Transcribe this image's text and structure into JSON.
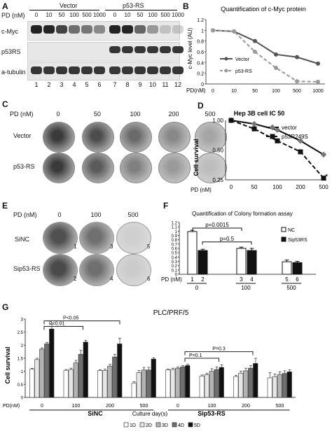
{
  "panelA": {
    "label": "A",
    "pd_header": "PD (nM)",
    "group_vector": "Vector",
    "group_p53rs": "p53-RS",
    "doses": [
      "0",
      "10",
      "50",
      "100",
      "500",
      "1000",
      "0",
      "10",
      "50",
      "100",
      "500",
      "1000"
    ],
    "rows": [
      "c-Myc",
      "p53RS",
      "a-tubulin"
    ],
    "lanes": [
      "1",
      "2",
      "3",
      "4",
      "5",
      "6",
      "7",
      "8",
      "9",
      "10",
      "11",
      "12"
    ]
  },
  "panelB": {
    "label": "B",
    "title": "Quantification of c-Myc protein",
    "ylabel": "c-Myc level (AU)",
    "xlabel_prefix": "PD(nM)",
    "yticks": [
      "0",
      "0.2",
      "0.4",
      "0.6",
      "0.8",
      "1",
      "1.2"
    ],
    "xticks": [
      "0",
      "10",
      "50",
      "100",
      "500",
      "1000"
    ],
    "legend": [
      "Vector",
      "p53-RS"
    ]
  },
  "panelC": {
    "label": "C",
    "pd_header": "PD (nM)",
    "doses": [
      "0",
      "50",
      "100",
      "200",
      "500"
    ],
    "rows": [
      "Vector",
      "p53-RS"
    ]
  },
  "panelD": {
    "label": "D",
    "title": "Hep 3B cell IC 50",
    "ylabel": "Cell survival",
    "xlabel_prefix": "PD (nM)",
    "yticks": [
      "1.00",
      "0.50",
      "0.25"
    ],
    "xticks": [
      "0",
      "50",
      "100",
      "200",
      "500"
    ],
    "legend": [
      "vector",
      "p53R249S"
    ],
    "star": "*"
  },
  "panelE": {
    "label": "E",
    "pd_header": "PD (nM)",
    "doses": [
      "0",
      "100",
      "500"
    ],
    "rows": [
      "SiNC",
      "Sip53-RS"
    ],
    "numbers": [
      "1",
      "3",
      "5",
      "2",
      "4",
      "6"
    ]
  },
  "panelF": {
    "label": "F",
    "title": "Quantification of Colony  formation assay",
    "yticks": [
      "0",
      "0.1",
      "0.2",
      "0.3",
      "0.4",
      "0.5",
      "0.6",
      "0.7",
      "0.8",
      "0.9",
      "1",
      "1.1",
      "1.2"
    ],
    "legend": [
      "NC",
      "Sip53RS"
    ],
    "pvals": [
      "p=0.0015",
      "p=0.5"
    ],
    "xlabel_prefix": "PD (nM)",
    "lane_nums": [
      "1",
      "2",
      "3",
      "4",
      "5",
      "6"
    ],
    "doses": [
      "0",
      "100",
      "500"
    ]
  },
  "panelG": {
    "label": "G",
    "title": "PLC/PRF/5",
    "ylabel": "Cell survival",
    "yticks": [
      "0",
      "0.5",
      "1",
      "1.5",
      "2",
      "2.5",
      "3"
    ],
    "xlabel_prefix": "PD(nM)",
    "doses": [
      "0",
      "100",
      "200",
      "500",
      "0",
      "100",
      "200",
      "500"
    ],
    "groups": [
      "SiNC",
      "Sip53-RS"
    ],
    "xtitle": "Culture day(s)",
    "legend": [
      "1D",
      "2D",
      "3D",
      "4D",
      "5D"
    ],
    "pvals": [
      "P<0.05",
      "P<0.01",
      "P=0.3",
      "P=0.1"
    ]
  },
  "chart_data": [
    {
      "type": "line",
      "title": "Quantification of c-Myc protein",
      "ylabel": "c-Myc level (AU)",
      "categories": [
        "0",
        "10",
        "50",
        "100",
        "500",
        "1000"
      ],
      "ylim": [
        0,
        1.2
      ],
      "series": [
        {
          "name": "Vector",
          "values": [
            1.0,
            0.98,
            0.8,
            0.55,
            0.5,
            0.38
          ],
          "color": "#555555"
        },
        {
          "name": "p53-RS",
          "values": [
            1.0,
            0.98,
            0.6,
            0.3,
            0.05,
            0.04
          ],
          "color": "#999999"
        }
      ]
    },
    {
      "type": "line",
      "title": "Hep 3B cell IC 50",
      "ylabel": "Cell survival",
      "categories": [
        "0",
        "50",
        "100",
        "200",
        "500"
      ],
      "yscale": "log",
      "ylim": [
        0.25,
        1.0
      ],
      "series": [
        {
          "name": "vector",
          "values": [
            1.0,
            0.92,
            0.8,
            0.62,
            0.45
          ],
          "color": "#777777"
        },
        {
          "name": "p53R249S",
          "values": [
            1.0,
            0.82,
            0.62,
            0.48,
            0.26
          ],
          "color": "#111111"
        }
      ]
    },
    {
      "type": "bar",
      "title": "Quantification of Colony  formation assay",
      "categories": [
        "0",
        "100",
        "500"
      ],
      "ylim": [
        0,
        1.2
      ],
      "series": [
        {
          "name": "NC",
          "values": [
            0.99,
            0.6,
            0.29
          ],
          "errors": [
            0.03,
            0.03,
            0.04
          ]
        },
        {
          "name": "Sip53RS",
          "values": [
            0.55,
            0.55,
            0.27
          ],
          "errors": [
            0.03,
            0.05,
            0.03
          ]
        }
      ]
    },
    {
      "type": "bar",
      "title": "PLC/PRF/5",
      "ylabel": "Cell survival",
      "xlabel": "Culture day(s)",
      "categories": [
        "0",
        "100",
        "200",
        "500",
        "0",
        "100",
        "200",
        "500"
      ],
      "groups": [
        "SiNC",
        "SiNC",
        "SiNC",
        "SiNC",
        "Sip53-RS",
        "Sip53-RS",
        "Sip53-RS",
        "Sip53-RS"
      ],
      "ylim": [
        0,
        3
      ],
      "series": [
        {
          "name": "1D",
          "values": [
            1.08,
            1.04,
            1.03,
            0.55,
            1.05,
            0.82,
            0.8,
            0.75
          ],
          "errors": [
            0.03,
            0.03,
            0.03,
            0.05,
            0.03,
            0.04,
            0.05,
            0.2
          ]
        },
        {
          "name": "2D",
          "values": [
            1.45,
            1.07,
            1.03,
            0.95,
            1.07,
            0.87,
            0.93,
            0.8
          ],
          "errors": [
            0.05,
            0.05,
            0.05,
            0.08,
            0.05,
            0.05,
            0.08,
            0.1
          ]
        },
        {
          "name": "3D",
          "values": [
            1.85,
            1.32,
            1.2,
            1.05,
            1.12,
            1.0,
            1.02,
            0.88
          ],
          "errors": [
            0.05,
            0.1,
            0.07,
            0.1,
            0.05,
            0.1,
            0.1,
            0.1
          ]
        },
        {
          "name": "4D",
          "values": [
            2.05,
            1.65,
            1.55,
            1.05,
            1.17,
            1.07,
            1.12,
            0.92
          ],
          "errors": [
            0.06,
            0.15,
            0.1,
            0.1,
            0.05,
            0.1,
            0.1,
            0.1
          ]
        },
        {
          "name": "5D",
          "values": [
            2.62,
            2.12,
            2.05,
            1.47,
            1.22,
            1.15,
            1.3,
            0.98
          ],
          "errors": [
            0.18,
            0.07,
            0.22,
            0.05,
            0.05,
            0.1,
            0.2,
            0.08
          ]
        }
      ],
      "annotations": [
        "P<0.05",
        "P<0.01",
        "P=0.3",
        "P=0.1"
      ]
    }
  ]
}
